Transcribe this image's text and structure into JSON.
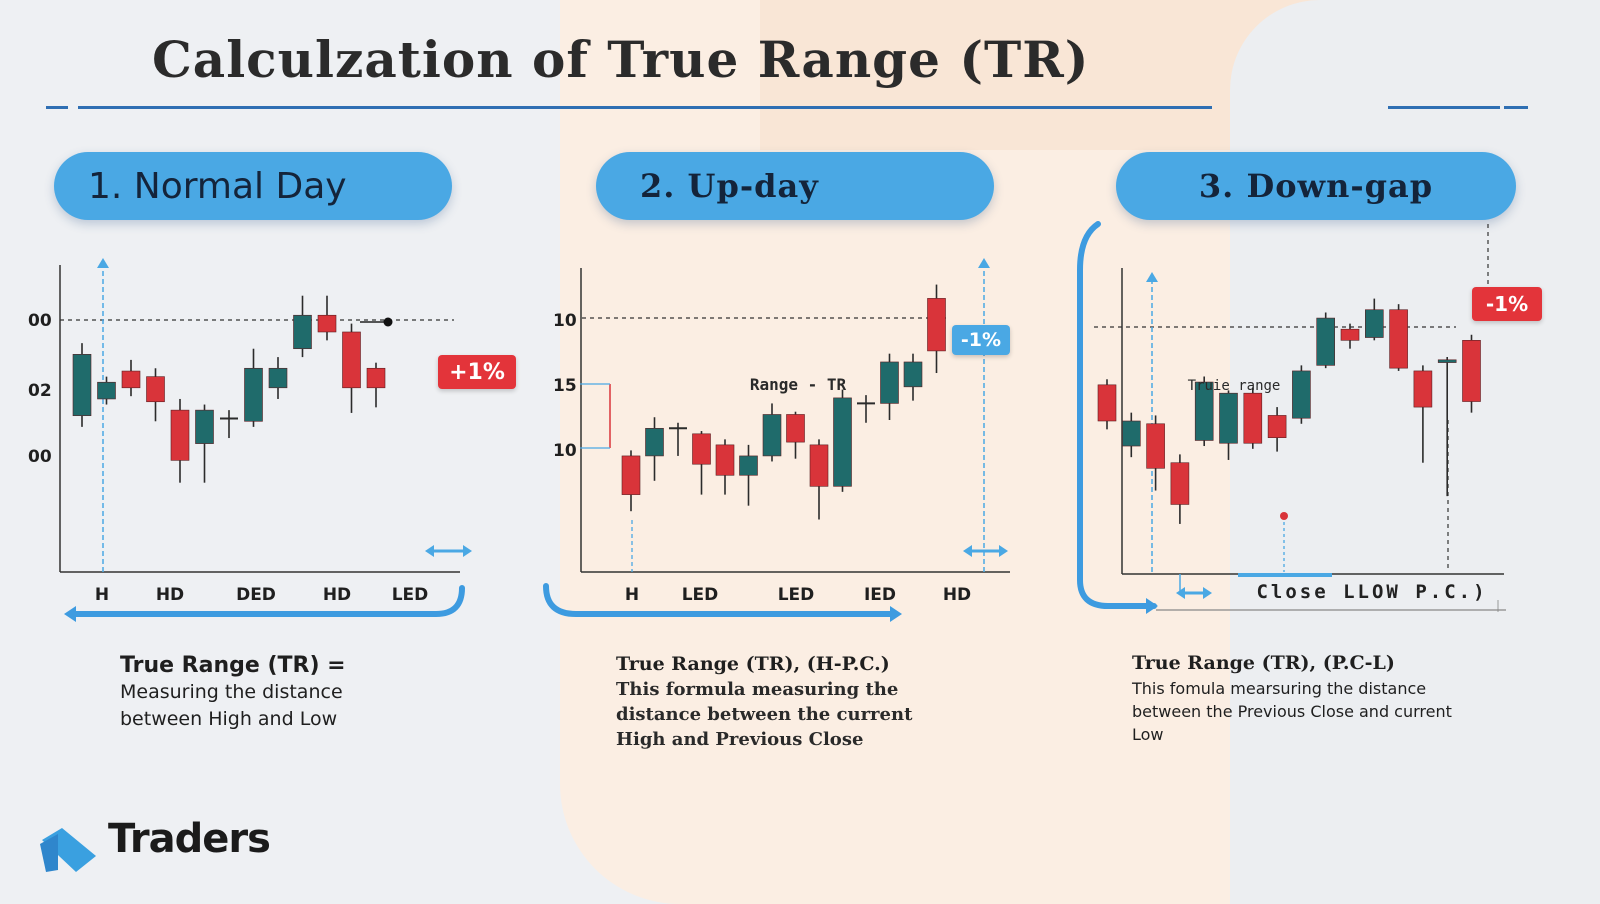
{
  "title": "Calculzation of True Range (TR)",
  "colors": {
    "bull": "#1f6b6b",
    "bear": "#d9343a",
    "accent": "#4aa8e4",
    "rule": "#2f6fb3"
  },
  "panels": [
    {
      "heading": "1. Normal Day",
      "y_ticks": [
        "00",
        "02",
        "00"
      ],
      "x_ticks": [
        "H",
        "HD",
        "DED",
        "HD",
        "LED"
      ],
      "badge": "+1%",
      "annotation": "",
      "desc_title": "True Range (TR) =",
      "desc_lines": [
        "Measuring the distance",
        "between High and Low"
      ]
    },
    {
      "heading": "2.  Up-day",
      "y_ticks": [
        "10",
        "15",
        "10"
      ],
      "x_ticks": [
        "H",
        "LED",
        "LED",
        "IED",
        "HD"
      ],
      "badge": "-1%",
      "annotation": "Range - TR",
      "desc_title": "True Range (TR), (H-P.C.)",
      "desc_lines": [
        "This formula measuring the",
        "distance between the current",
        "High and Previous Close"
      ]
    },
    {
      "heading": "3. Down-gap",
      "y_ticks": [],
      "x_ticks": [],
      "x_caption": "Close LLOW P.C.)",
      "badge": "-1%",
      "annotation": "Truie range",
      "desc_title": "True Range (TR), (P.C-L)",
      "desc_lines": [
        "This fomula mearsuring the distance",
        "between the Previous Close and current",
        "Low"
      ]
    }
  ],
  "brand": {
    "name": "Traders",
    "logo_icon": "traders-logo-icon"
  },
  "chart_data": [
    {
      "type": "candlestick",
      "panel": "1. Normal Day",
      "y_tick_labels": [
        "00",
        "02",
        "00"
      ],
      "categories": [
        "H",
        "HD",
        "DED",
        "HD",
        "LED"
      ],
      "candles": [
        {
          "o": 56,
          "c": 78,
          "h": 82,
          "l": 52
        },
        {
          "o": 62,
          "c": 68,
          "h": 70,
          "l": 60
        },
        {
          "o": 72,
          "c": 66,
          "h": 76,
          "l": 63
        },
        {
          "o": 70,
          "c": 61,
          "h": 73,
          "l": 54
        },
        {
          "o": 58,
          "c": 40,
          "h": 62,
          "l": 32
        },
        {
          "o": 46,
          "c": 58,
          "h": 60,
          "l": 32
        },
        {
          "o": 55,
          "c": 55,
          "h": 58,
          "l": 48
        },
        {
          "o": 54,
          "c": 73,
          "h": 80,
          "l": 52
        },
        {
          "o": 66,
          "c": 73,
          "h": 77,
          "l": 62
        },
        {
          "o": 80,
          "c": 92,
          "h": 99,
          "l": 77
        },
        {
          "o": 92,
          "c": 86,
          "h": 99,
          "l": 83
        },
        {
          "o": 86,
          "c": 66,
          "h": 89,
          "l": 57
        },
        {
          "o": 73,
          "c": 66,
          "h": 75,
          "l": 59
        }
      ]
    },
    {
      "type": "candlestick",
      "panel": "2. Up-day",
      "y_tick_labels": [
        "10",
        "15",
        "10"
      ],
      "categories": [
        "H",
        "LED",
        "LED",
        "IED",
        "HD"
      ],
      "candles": [
        {
          "o": 42,
          "c": 28,
          "h": 44,
          "l": 22
        },
        {
          "o": 42,
          "c": 52,
          "h": 56,
          "l": 33
        },
        {
          "o": 52,
          "c": 52,
          "h": 54,
          "l": 42
        },
        {
          "o": 50,
          "c": 39,
          "h": 51,
          "l": 28
        },
        {
          "o": 46,
          "c": 35,
          "h": 48,
          "l": 28
        },
        {
          "o": 35,
          "c": 42,
          "h": 46,
          "l": 24
        },
        {
          "o": 42,
          "c": 57,
          "h": 61,
          "l": 40
        },
        {
          "o": 57,
          "c": 47,
          "h": 58,
          "l": 41
        },
        {
          "o": 46,
          "c": 31,
          "h": 48,
          "l": 19
        },
        {
          "o": 31,
          "c": 63,
          "h": 66,
          "l": 29
        },
        {
          "o": 61,
          "c": 61,
          "h": 64,
          "l": 54
        },
        {
          "o": 61,
          "c": 76,
          "h": 79,
          "l": 55
        },
        {
          "o": 67,
          "c": 76,
          "h": 79,
          "l": 62
        },
        {
          "o": 99,
          "c": 80,
          "h": 104,
          "l": 72
        }
      ]
    },
    {
      "type": "candlestick",
      "panel": "3. Down-gap",
      "y_tick_labels": [],
      "categories": [],
      "candles": [
        {
          "o": 68,
          "c": 55,
          "h": 70,
          "l": 52
        },
        {
          "o": 46,
          "c": 55,
          "h": 58,
          "l": 42
        },
        {
          "o": 54,
          "c": 38,
          "h": 57,
          "l": 30
        },
        {
          "o": 40,
          "c": 25,
          "h": 43,
          "l": 18
        },
        {
          "o": 48,
          "c": 69,
          "h": 71,
          "l": 46
        },
        {
          "o": 47,
          "c": 65,
          "h": 66,
          "l": 41
        },
        {
          "o": 65,
          "c": 47,
          "h": 67,
          "l": 45
        },
        {
          "o": 57,
          "c": 49,
          "h": 60,
          "l": 44
        },
        {
          "o": 56,
          "c": 73,
          "h": 75,
          "l": 54
        },
        {
          "o": 75,
          "c": 92,
          "h": 94,
          "l": 74
        },
        {
          "o": 88,
          "c": 84,
          "h": 90,
          "l": 81
        },
        {
          "o": 85,
          "c": 95,
          "h": 99,
          "l": 84
        },
        {
          "o": 95,
          "c": 74,
          "h": 97,
          "l": 73
        },
        {
          "o": 73,
          "c": 60,
          "h": 75,
          "l": 40
        },
        {
          "o": 76,
          "c": 77,
          "h": 78,
          "l": 28
        },
        {
          "o": 84,
          "c": 62,
          "h": 86,
          "l": 58
        }
      ]
    }
  ]
}
